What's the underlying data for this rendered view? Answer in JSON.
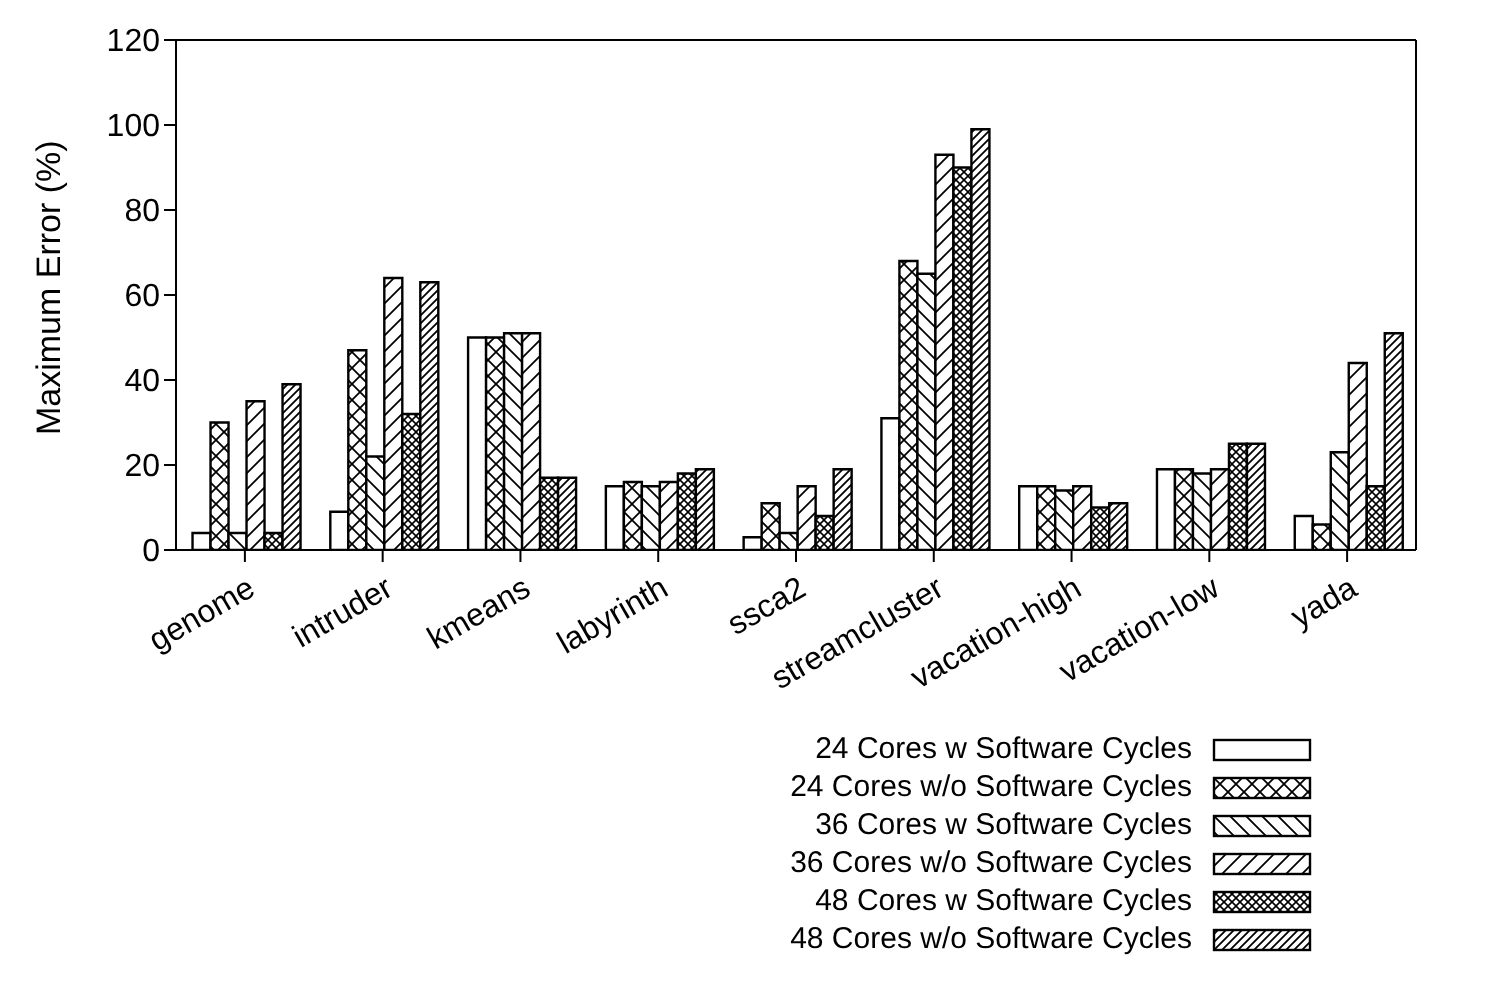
{
  "chart_data": {
    "type": "bar",
    "ylabel": "Maximum Error (%)",
    "categories": [
      "genome",
      "intruder",
      "kmeans",
      "labyrinth",
      "ssca2",
      "streamcluster",
      "vacation-high",
      "vacation-low",
      "yada"
    ],
    "series": [
      {
        "name": "24 Cores w Software Cycles",
        "color": "#000000",
        "values": [
          4,
          9,
          50,
          15,
          3,
          31,
          15,
          19,
          8
        ]
      },
      {
        "name": "24 Cores w/o Software Cycles",
        "color": "#000000",
        "values": [
          30,
          47,
          50,
          16,
          11,
          68,
          15,
          19,
          6
        ]
      },
      {
        "name": "36 Cores w Software Cycles",
        "color": "#000000",
        "values": [
          4,
          22,
          51,
          15,
          4,
          65,
          14,
          18,
          23
        ]
      },
      {
        "name": "36 Cores w/o Software Cycles",
        "color": "#000000",
        "values": [
          35,
          64,
          51,
          16,
          15,
          93,
          15,
          19,
          44
        ]
      },
      {
        "name": "48 Cores w Software Cycles",
        "color": "#000000",
        "values": [
          4,
          32,
          17,
          18,
          8,
          90,
          10,
          25,
          15
        ]
      },
      {
        "name": "48 Cores w/o Software Cycles",
        "color": "#000000",
        "values": [
          39,
          63,
          17,
          19,
          19,
          99,
          11,
          25,
          51
        ]
      }
    ],
    "ylim": [
      0,
      120
    ],
    "yticks": [
      0,
      20,
      40,
      60,
      80,
      100,
      120
    ],
    "legend": "bottom"
  }
}
